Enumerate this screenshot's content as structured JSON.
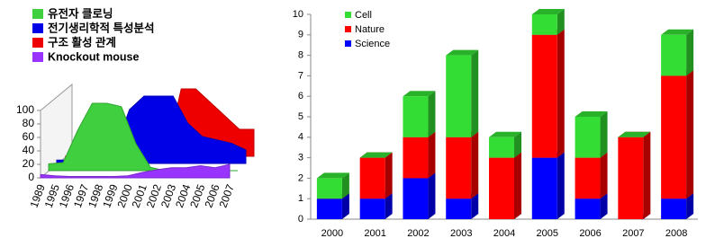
{
  "chart_data": [
    {
      "type": "area3d",
      "categories": [
        "1989",
        "1995",
        "1996",
        "1997",
        "1998",
        "1999",
        "2000",
        "2001",
        "2002",
        "2003",
        "2004",
        "2005",
        "2006",
        "2007"
      ],
      "ylim": [
        0,
        100
      ],
      "yticks": [
        0,
        20,
        40,
        60,
        80,
        100
      ],
      "series": [
        {
          "name": "유전자 클로닝",
          "color": "#3fcf3f",
          "values": [
            10,
            12,
            60,
            100,
            100,
            95,
            40,
            5,
            0,
            0,
            0,
            0,
            0,
            0
          ]
        },
        {
          "name": "전기생리학적 특성분석",
          "color": "#0000e6",
          "values": [
            5,
            5,
            5,
            10,
            20,
            80,
            100,
            100,
            100,
            60,
            40,
            35,
            30,
            20
          ]
        },
        {
          "name": "구조 활성 관계",
          "color": "#ee0000",
          "values": [
            0,
            0,
            0,
            0,
            0,
            0,
            0,
            5,
            100,
            100,
            80,
            60,
            40,
            40
          ]
        },
        {
          "name": "Knockout mouse",
          "color": "#9933ff",
          "values": [
            5,
            3,
            2,
            2,
            2,
            2,
            3,
            8,
            12,
            15,
            15,
            18,
            15,
            20
          ]
        }
      ]
    },
    {
      "type": "stacked-bar3d",
      "categories": [
        "2000",
        "2001",
        "2002",
        "2003",
        "2004",
        "2005",
        "2006",
        "2007",
        "2008"
      ],
      "ylim": [
        0,
        10
      ],
      "yticks": [
        0,
        1,
        2,
        3,
        4,
        5,
        6,
        7,
        8,
        9,
        10
      ],
      "series": [
        {
          "name": "Science",
          "color": "#0000ff",
          "values": [
            1,
            1,
            2,
            1,
            0,
            3,
            1,
            0,
            1
          ]
        },
        {
          "name": "Nature",
          "color": "#ff0000",
          "values": [
            0,
            2,
            2,
            3,
            3,
            6,
            2,
            4,
            6
          ]
        },
        {
          "name": "Cell",
          "color": "#33dd33",
          "values": [
            1,
            0,
            2,
            4,
            1,
            1,
            2,
            0,
            2
          ]
        }
      ]
    }
  ]
}
